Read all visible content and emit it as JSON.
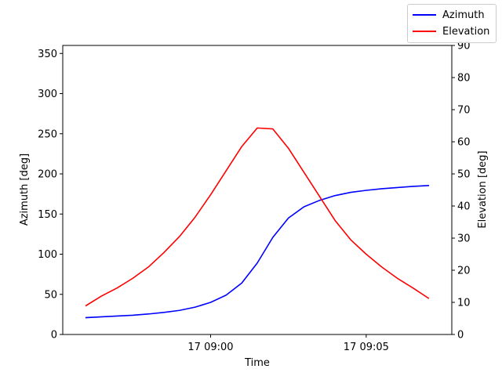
{
  "chart_data": {
    "type": "line",
    "title": "",
    "xlabel": "Time",
    "x_ticks": [
      "17 09:00",
      "17 09:05"
    ],
    "x_tick_minutes": [
      0,
      5
    ],
    "x_range_minutes": [
      -4.75,
      7.75
    ],
    "x": [
      -4,
      -3.5,
      -3,
      -2.5,
      -2,
      -1.5,
      -1,
      -0.5,
      0,
      0.5,
      1,
      1.5,
      2,
      2.5,
      3,
      3.5,
      4,
      4.5,
      5,
      5.5,
      6,
      6.5,
      7
    ],
    "left_axis": {
      "label": "Azimuth [deg]",
      "ylim": [
        0,
        360
      ],
      "ticks": [
        0,
        50,
        100,
        150,
        200,
        250,
        300,
        350
      ]
    },
    "right_axis": {
      "label": "Elevation [deg]",
      "ylim": [
        0,
        90
      ],
      "ticks": [
        0,
        10,
        20,
        30,
        40,
        50,
        60,
        70,
        80,
        90
      ]
    },
    "series": [
      {
        "name": "Azimuth",
        "axis": "left",
        "color": "#0000ff",
        "values": [
          21,
          22,
          23,
          24,
          25.5,
          27.5,
          30,
          34,
          40,
          49,
          64,
          89,
          121,
          145,
          159,
          167,
          173,
          177,
          179.5,
          181.5,
          183,
          184.5,
          185.5
        ]
      },
      {
        "name": "Elevation",
        "axis": "right",
        "color": "#ff0000",
        "values": [
          9,
          12,
          14.5,
          17.5,
          21,
          25.5,
          30.5,
          36.5,
          43.5,
          51,
          58.5,
          64.3,
          64,
          58,
          50.5,
          43,
          35.5,
          29.5,
          25,
          21,
          17.5,
          14.5,
          11.3
        ]
      }
    ],
    "legend_position": "top-right",
    "grid": false
  }
}
